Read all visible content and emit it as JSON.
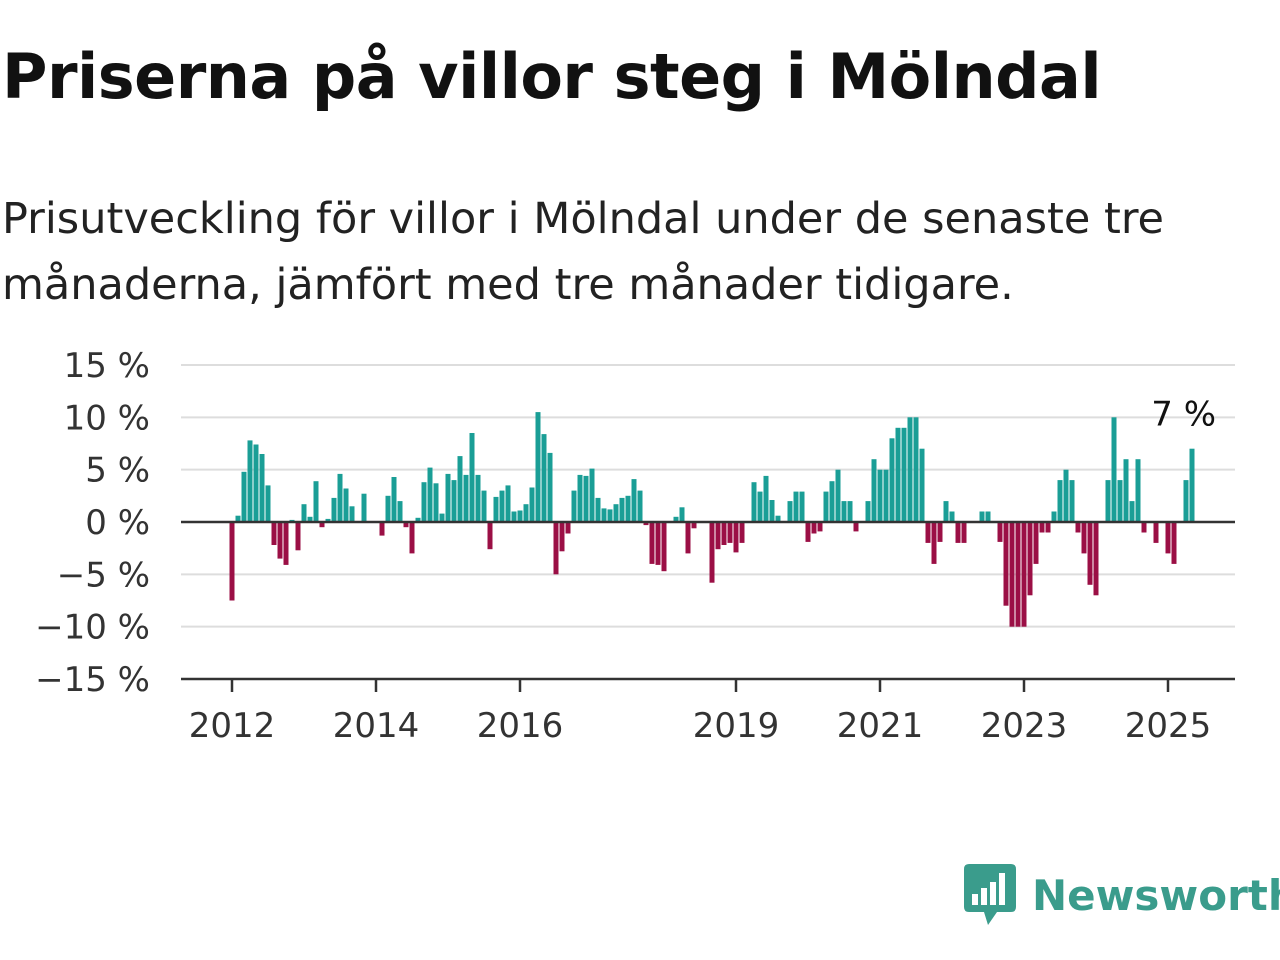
{
  "title": "Priserna på villor steg i Mölndal",
  "subtitle": "Prisutveckling för villor i Mölndal under de senaste tre månaderna, jämfört med tre månader tidigare.",
  "brand": {
    "name": "Newsworthy",
    "color": "#3a9c8c",
    "logo_icon": "bar-chart-speech-bubble-icon"
  },
  "chart_data": {
    "type": "bar",
    "x_start": "2012-01",
    "x_end": "2025-04",
    "ylim": [
      -15,
      15
    ],
    "yticks": [
      15,
      10,
      5,
      0,
      -5,
      -10,
      -15
    ],
    "ytick_labels": [
      "15 %",
      "10 %",
      "5 %",
      "0 %",
      "−5 %",
      "−10 %",
      "−15 %"
    ],
    "xticks": [
      "2012",
      "2014",
      "2016",
      "2019",
      "2021",
      "2023",
      "2025"
    ],
    "grid": true,
    "colors": {
      "positive": "#1a9e96",
      "negative": "#9b0f45"
    },
    "annotation": {
      "label": "7 %",
      "month": "2025-04",
      "value": 7
    },
    "series": [
      {
        "values": [
          -7.5,
          0.6,
          4.8,
          7.8,
          7.4,
          6.5,
          3.5,
          -2.2,
          -3.5,
          -4.1,
          0.2,
          -2.7,
          1.7,
          0.5,
          3.9,
          -0.5,
          0.3,
          2.3,
          4.6,
          3.2,
          1.5,
          0,
          2.7,
          0,
          0,
          -1.3,
          2.5,
          4.3,
          2.0,
          -0.5,
          -3.0,
          0.4,
          3.8,
          5.2,
          3.7,
          0.8,
          4.6,
          4.0,
          6.3,
          4.5,
          8.5,
          4.5,
          3.0,
          -2.6,
          2.4,
          3.0,
          3.5,
          1.0,
          1.1,
          1.7,
          3.3,
          10.5,
          8.4,
          6.6,
          -5.0,
          -2.8,
          -1.1,
          3.0,
          4.5,
          4.4,
          5.1,
          2.3,
          1.3,
          1.2,
          1.7,
          2.3,
          2.5,
          4.1,
          3.0,
          -0.3,
          -4.0,
          -4.1,
          -4.7,
          0,
          0.5,
          1.4,
          -3.0,
          -0.6,
          0,
          0,
          -5.8,
          -2.6,
          -2.2,
          -2.0,
          -2.9,
          -2.0,
          0,
          3.8,
          2.9,
          4.4,
          2.1,
          0.6,
          0,
          2.0,
          2.9,
          2.9,
          -1.9,
          -1.1,
          -0.9,
          2.9,
          3.9,
          5.0,
          2.0,
          2.0,
          -0.9,
          0,
          2.0,
          6.0,
          5.0,
          5.0,
          8.0,
          9.0,
          9.0,
          10.0,
          10.0,
          7.0,
          -2.0,
          -4.0,
          -1.9,
          2.0,
          1.0,
          -2.0,
          -2.0,
          0,
          0,
          1.0,
          1.0,
          0,
          -1.9,
          -8.0,
          -10.0,
          -10.0,
          -10.0,
          -7.0,
          -4.0,
          -1.0,
          -1.0,
          1.0,
          4.0,
          5.0,
          4.0,
          -1.0,
          -3.0,
          -6.0,
          -7.0,
          0,
          4.0,
          10.0,
          4.0,
          6.0,
          2.0,
          6.0,
          -1.0,
          0,
          -2.0,
          0,
          -3.0,
          -4.0,
          0,
          4.0,
          7.0
        ]
      }
    ]
  }
}
